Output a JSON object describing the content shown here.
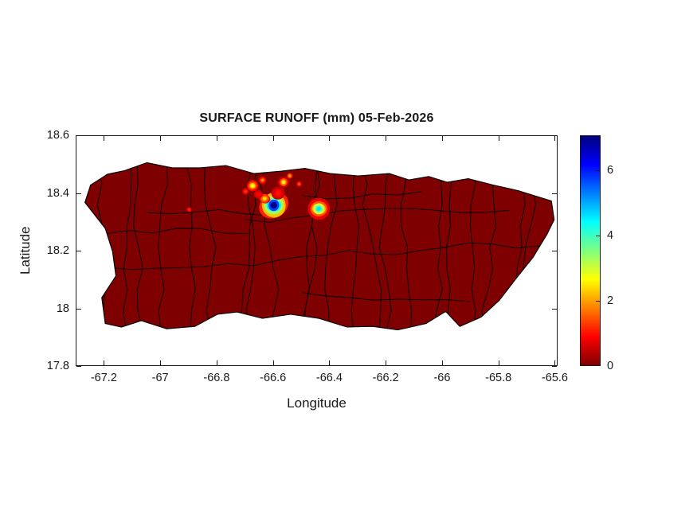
{
  "figure": {
    "background_color": "#ffffff",
    "axes_color": "#1a1a1a"
  },
  "chart_data": {
    "type": "heatmap",
    "title": "SURFACE RUNOFF (mm) 05-Feb-2026",
    "xlabel": "Longitude",
    "ylabel": "Latitude",
    "region": "Puerto Rico with municipality boundaries",
    "grid": false,
    "xlim": [
      -67.3,
      -65.59
    ],
    "ylim": [
      17.8,
      18.6
    ],
    "x_ticks": [
      "-67.2",
      "-67",
      "-66.8",
      "-66.6",
      "-66.4",
      "-66.2",
      "-66",
      "-65.8",
      "-65.6"
    ],
    "y_ticks": [
      "18.6",
      "18.4",
      "18.2",
      "18",
      "17.8"
    ],
    "zero_color": "#7f0000",
    "coastline_color": "#000000",
    "background_runoff_mm": 0,
    "colorbar": {
      "position": "right",
      "ticks": [
        "0",
        "2",
        "4",
        "6"
      ],
      "vmin": 0,
      "vmax": 7.07,
      "colormap": "jet (0 = dark red at bottom, max = dark blue at top)",
      "stops": [
        {
          "t": 0.0,
          "color": "#7f0000"
        },
        {
          "t": 0.125,
          "color": "#ff0000"
        },
        {
          "t": 0.375,
          "color": "#ffff00"
        },
        {
          "t": 0.625,
          "color": "#00ffff"
        },
        {
          "t": 0.875,
          "color": "#0000ff"
        },
        {
          "t": 1.0,
          "color": "#00007f"
        }
      ]
    },
    "hotspots": [
      {
        "lon": -66.6,
        "lat": 18.36,
        "peak_mm": 7.0,
        "radius_deg": 0.042
      },
      {
        "lon": -66.632,
        "lat": 18.383,
        "peak_mm": 2.4,
        "radius_deg": 0.02
      },
      {
        "lon": -66.44,
        "lat": 18.348,
        "peak_mm": 4.6,
        "radius_deg": 0.03
      },
      {
        "lon": -66.675,
        "lat": 18.428,
        "peak_mm": 2.8,
        "radius_deg": 0.02
      },
      {
        "lon": -66.64,
        "lat": 18.447,
        "peak_mm": 2.0,
        "radius_deg": 0.013
      },
      {
        "lon": -66.565,
        "lat": 18.44,
        "peak_mm": 2.9,
        "radius_deg": 0.016
      },
      {
        "lon": -66.543,
        "lat": 18.462,
        "peak_mm": 2.2,
        "radius_deg": 0.011
      },
      {
        "lon": -66.51,
        "lat": 18.434,
        "peak_mm": 1.6,
        "radius_deg": 0.01
      },
      {
        "lon": -66.7,
        "lat": 18.408,
        "peak_mm": 1.3,
        "radius_deg": 0.014
      },
      {
        "lon": -66.9,
        "lat": 18.345,
        "peak_mm": 1.2,
        "radius_deg": 0.012
      },
      {
        "lon": -66.585,
        "lat": 18.402,
        "peak_mm": 1.0,
        "radius_deg": 0.03
      },
      {
        "lon": -66.655,
        "lat": 18.398,
        "peak_mm": 0.9,
        "radius_deg": 0.025
      }
    ]
  }
}
